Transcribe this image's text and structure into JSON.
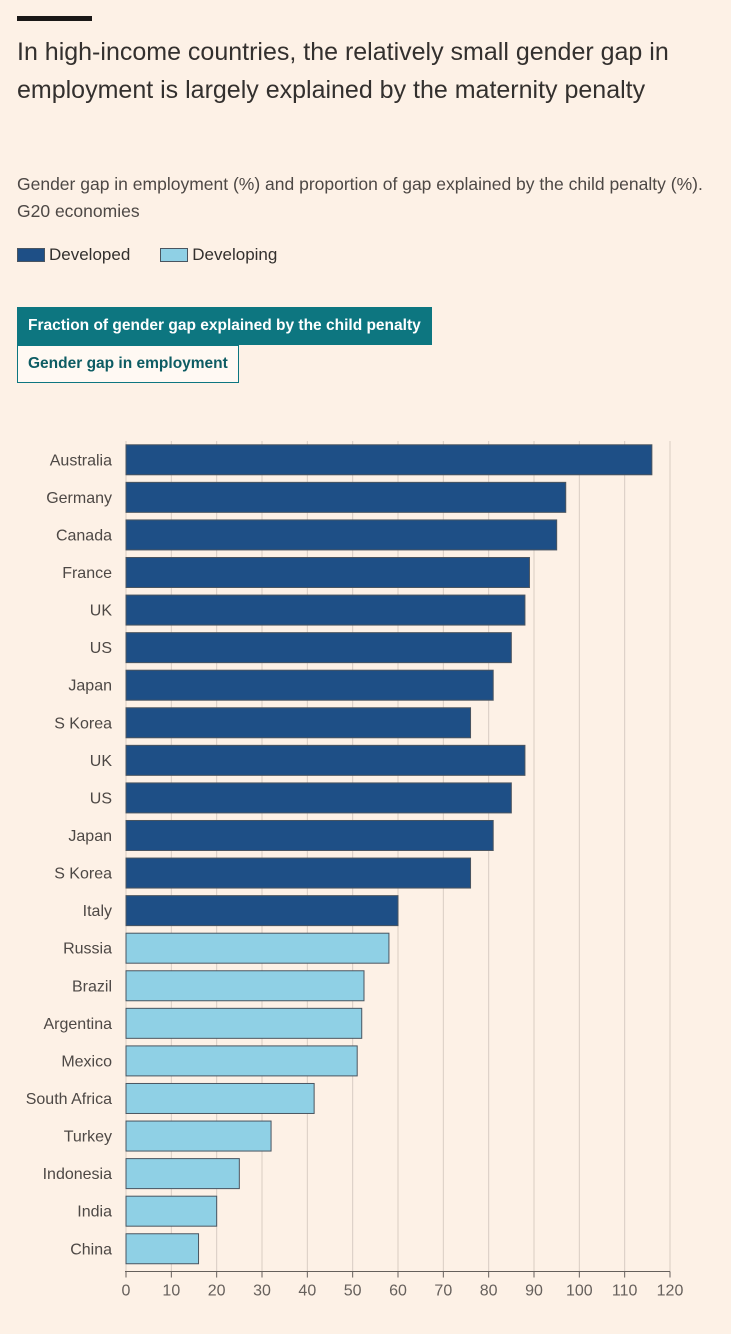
{
  "header": {
    "title": "In high-income countries, the relatively small gender gap in employment is largely explained by the maternity penalty",
    "subtitle": "Gender gap in employment (%) and proportion of gap explained by the child penalty (%). G20 economies"
  },
  "legend": {
    "items": [
      {
        "label": "Developed",
        "color": "#1e4f86"
      },
      {
        "label": "Developing",
        "color": "#8fd0e5"
      }
    ]
  },
  "tabs": {
    "active_label": "Fraction of gender gap explained by the child penalty",
    "inactive_label": "Gender gap in employment"
  },
  "chart_data": {
    "type": "bar",
    "orientation": "horizontal",
    "title": "Fraction of gender gap explained by the child penalty",
    "xlabel": "",
    "ylabel": "",
    "xlim": [
      0,
      120
    ],
    "xticks": [
      0,
      10,
      20,
      30,
      40,
      50,
      60,
      70,
      80,
      90,
      100,
      110,
      120
    ],
    "grid": true,
    "colors": {
      "Developed": "#1e4f86",
      "Developing": "#8fd0e5",
      "grid": "#d9cdc3",
      "bar_outline": "#4a5560"
    },
    "bars": [
      {
        "label": "Australia",
        "value": 116,
        "group": "Developed"
      },
      {
        "label": "Germany",
        "value": 97,
        "group": "Developed"
      },
      {
        "label": "Canada",
        "value": 95,
        "group": "Developed"
      },
      {
        "label": "France",
        "value": 89,
        "group": "Developed"
      },
      {
        "label": "UK",
        "value": 88,
        "group": "Developed"
      },
      {
        "label": "US",
        "value": 85,
        "group": "Developed"
      },
      {
        "label": "Japan",
        "value": 81,
        "group": "Developed"
      },
      {
        "label": "S Korea",
        "value": 76,
        "group": "Developed"
      },
      {
        "label": "UK",
        "value": 88,
        "group": "Developed"
      },
      {
        "label": "US",
        "value": 85,
        "group": "Developed"
      },
      {
        "label": "Japan",
        "value": 81,
        "group": "Developed"
      },
      {
        "label": "S Korea",
        "value": 76,
        "group": "Developed"
      },
      {
        "label": "Italy",
        "value": 60,
        "group": "Developed"
      },
      {
        "label": "Russia",
        "value": 58,
        "group": "Developing"
      },
      {
        "label": "Brazil",
        "value": 52.5,
        "group": "Developing"
      },
      {
        "label": "Argentina",
        "value": 52,
        "group": "Developing"
      },
      {
        "label": "Mexico",
        "value": 51,
        "group": "Developing"
      },
      {
        "label": "South Africa",
        "value": 41.5,
        "group": "Developing"
      },
      {
        "label": "Turkey",
        "value": 32,
        "group": "Developing"
      },
      {
        "label": "Indonesia",
        "value": 25,
        "group": "Developing"
      },
      {
        "label": "India",
        "value": 20,
        "group": "Developing"
      },
      {
        "label": "China",
        "value": 16,
        "group": "Developing"
      }
    ]
  }
}
